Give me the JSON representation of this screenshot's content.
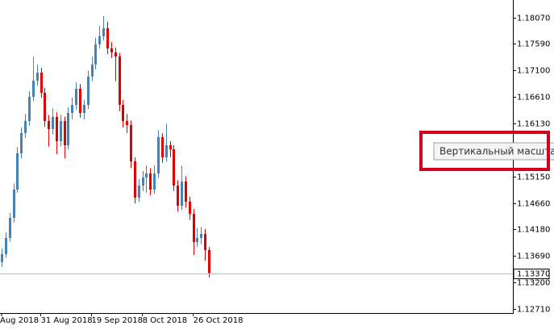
{
  "chart_data": {
    "type": "candlestick",
    "categories": [
      "Aug 2018",
      null,
      null,
      null,
      null,
      null,
      null,
      null,
      null,
      null,
      "31 Aug 2018",
      null,
      null,
      null,
      null,
      null,
      null,
      null,
      null,
      null,
      null,
      null,
      null,
      "19 Sep 2018",
      null,
      null,
      null,
      null,
      null,
      null,
      null,
      null,
      null,
      null,
      null,
      null,
      "8 Oct 2018",
      null,
      null,
      null,
      null,
      null,
      null,
      null,
      null,
      null,
      null,
      null,
      null,
      "26 Oct 2018",
      null,
      null,
      null,
      null
    ],
    "open": [
      1.13571,
      1.13719,
      1.14016,
      1.14387,
      1.14907,
      1.15575,
      1.15947,
      1.16169,
      1.16615,
      1.16912,
      1.1706,
      1.16689,
      1.16169,
      1.16021,
      1.16244,
      1.15798,
      1.16169,
      1.15724,
      1.16318,
      1.16466,
      1.16763,
      1.16318,
      1.16466,
      1.16986,
      1.17209,
      1.1758,
      1.17729,
      1.17877,
      1.17506,
      1.17432,
      1.17357,
      1.16466,
      1.16169,
      1.16095,
      1.15427,
      1.14759,
      1.14981,
      1.1513,
      1.15204,
      1.14907,
      1.15204,
      1.15872,
      1.15501,
      1.15724,
      1.1565,
      1.14981,
      1.1461,
      1.15056,
      1.14684,
      1.14462,
      1.13942,
      1.14016,
      1.1409,
      1.13793
    ],
    "high": [
      1.1382,
      1.1412,
      1.1448,
      1.1502,
      1.1569,
      1.1605,
      1.163,
      1.1672,
      1.1735,
      1.172,
      1.1715,
      1.1678,
      1.1628,
      1.164,
      1.1633,
      1.1628,
      1.1625,
      1.1642,
      1.166,
      1.1688,
      1.1685,
      1.1656,
      1.171,
      1.1735,
      1.177,
      1.1792,
      1.181,
      1.18,
      1.1762,
      1.1752,
      1.1742,
      1.1656,
      1.163,
      1.1618,
      1.155,
      1.151,
      1.1525,
      1.1535,
      1.153,
      1.1535,
      1.16,
      1.1595,
      1.1612,
      1.158,
      1.1572,
      1.1508,
      1.1535,
      1.1515,
      1.1478,
      1.1455,
      1.142,
      1.1422,
      1.1418,
      1.1385
    ],
    "low": [
      1.1348,
      1.1365,
      1.1395,
      1.143,
      1.1485,
      1.1548,
      1.1586,
      1.1608,
      1.1654,
      1.1682,
      1.166,
      1.1606,
      1.157,
      1.1592,
      1.1556,
      1.157,
      1.1548,
      1.1565,
      1.162,
      1.1638,
      1.1623,
      1.162,
      1.1639,
      1.169,
      1.1712,
      1.175,
      1.1765,
      1.174,
      1.1733,
      1.169,
      1.1635,
      1.1605,
      1.1595,
      1.153,
      1.1465,
      1.1468,
      1.1488,
      1.1485,
      1.148,
      1.1483,
      1.1512,
      1.154,
      1.1542,
      1.155,
      1.1488,
      1.145,
      1.1453,
      1.1458,
      1.1435,
      1.137,
      1.1385,
      1.139,
      1.136,
      1.1329
    ],
    "close": [
      1.13719,
      1.14016,
      1.14387,
      1.14907,
      1.15575,
      1.15947,
      1.16169,
      1.16615,
      1.16912,
      1.1706,
      1.16689,
      1.16169,
      1.16021,
      1.16244,
      1.15798,
      1.16169,
      1.15724,
      1.16318,
      1.16466,
      1.16763,
      1.16318,
      1.16466,
      1.16986,
      1.17209,
      1.1758,
      1.17729,
      1.17877,
      1.17506,
      1.17432,
      1.17357,
      1.16466,
      1.16169,
      1.16095,
      1.15427,
      1.14759,
      1.14981,
      1.1513,
      1.15204,
      1.14907,
      1.15204,
      1.15872,
      1.15501,
      1.15724,
      1.1565,
      1.14981,
      1.1461,
      1.15056,
      1.14684,
      1.14462,
      1.13942,
      1.14016,
      1.1409,
      1.13793,
      1.1337
    ],
    "up_color": "#4682b4",
    "down_color": "#e00000",
    "ylim": [
      1.12635,
      1.18397
    ],
    "yticks": [
      {
        "value": 1.1807,
        "label": "1.18070"
      },
      {
        "value": 1.1759,
        "label": "1.17590"
      },
      {
        "value": 1.171,
        "label": "1.17100"
      },
      {
        "value": 1.1661,
        "label": "1.16610"
      },
      {
        "value": 1.1613,
        "label": "1.16130"
      },
      {
        "value": 1.1515,
        "label": "1.15150"
      },
      {
        "value": 1.1466,
        "label": "1.14660"
      },
      {
        "value": 1.1418,
        "label": "1.14180"
      },
      {
        "value": 1.1369,
        "label": "1.13690"
      },
      {
        "value": 1.132,
        "label": "1.13200"
      },
      {
        "value": 1.1271,
        "label": "1.12710"
      }
    ],
    "current_price": {
      "value": 1.1337,
      "label": "1.13370"
    },
    "tooltip": "Вертикальный масштаб"
  }
}
